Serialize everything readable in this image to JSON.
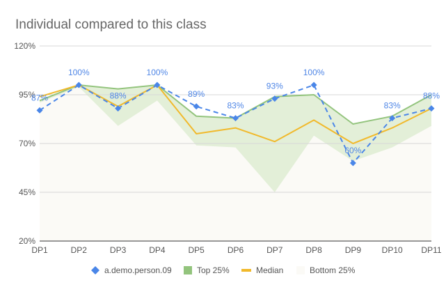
{
  "chart_data": {
    "type": "line",
    "title": "Individual compared to this class",
    "categories": [
      "DP1",
      "DP2",
      "DP3",
      "DP4",
      "DP5",
      "DP6",
      "DP7",
      "DP8",
      "DP9",
      "DP10",
      "DP11"
    ],
    "y_ticks": [
      "120%",
      "95%",
      "70%",
      "45%",
      "20%"
    ],
    "ylim": [
      20,
      120
    ],
    "grid": true,
    "legend_position": "bottom",
    "series": [
      {
        "name": "a.demo.person.09",
        "values": [
          87,
          100,
          88,
          100,
          89,
          83,
          93,
          100,
          60,
          83,
          88
        ],
        "color": "#4a86e8",
        "style": "dashed",
        "marker": "diamond",
        "labels": [
          "87%",
          "100%",
          "88%",
          "100%",
          "89%",
          "83%",
          "93%",
          "100%",
          "60%",
          "83%",
          "88%"
        ]
      },
      {
        "name": "Top 25%",
        "values": [
          92,
          100,
          98,
          100,
          84,
          83,
          94,
          95,
          80,
          84,
          95
        ],
        "color": "#93c47d"
      },
      {
        "name": "Median",
        "values": [
          94,
          100,
          89,
          100,
          75,
          78,
          71,
          82,
          70,
          78,
          88
        ],
        "color": "#f1b92b"
      },
      {
        "name": "Bottom 25%",
        "values": [
          91,
          99,
          79,
          92,
          69,
          68,
          45,
          74,
          61,
          68,
          79
        ],
        "color": "#fbfaf6"
      }
    ]
  }
}
